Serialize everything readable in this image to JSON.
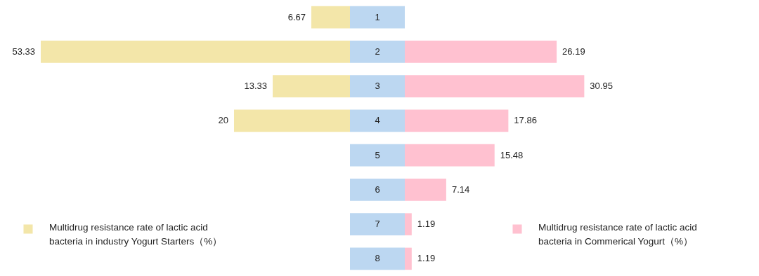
{
  "chart_data": [
    {
      "type": "bar",
      "orientation": "horizontal",
      "categories": [
        "1",
        "2",
        "3",
        "4",
        "5",
        "6",
        "7",
        "8"
      ],
      "series": [
        {
          "name": "Multidrug resistance rate of lactic acid bacteria in industry Yogurt Starters（%）",
          "color": "#f3e6a9",
          "values": [
            6.67,
            53.33,
            13.33,
            20,
            null,
            null,
            null,
            null
          ]
        }
      ],
      "data_labels": true,
      "legend": "bottom left"
    },
    {
      "type": "bar",
      "orientation": "horizontal",
      "categories": [
        "1",
        "2",
        "3",
        "4",
        "5",
        "6",
        "7",
        "8"
      ],
      "series": [
        {
          "name": "Multidrug resistance rate of lactic acid bacteria in Commerical Yogurt（%）",
          "color": "#ffc1d0",
          "values": [
            null,
            26.19,
            30.95,
            17.86,
            15.48,
            7.14,
            1.19,
            1.19
          ]
        }
      ],
      "data_labels": true,
      "legend": "bottom right",
      "tick_labels": false
    }
  ]
}
